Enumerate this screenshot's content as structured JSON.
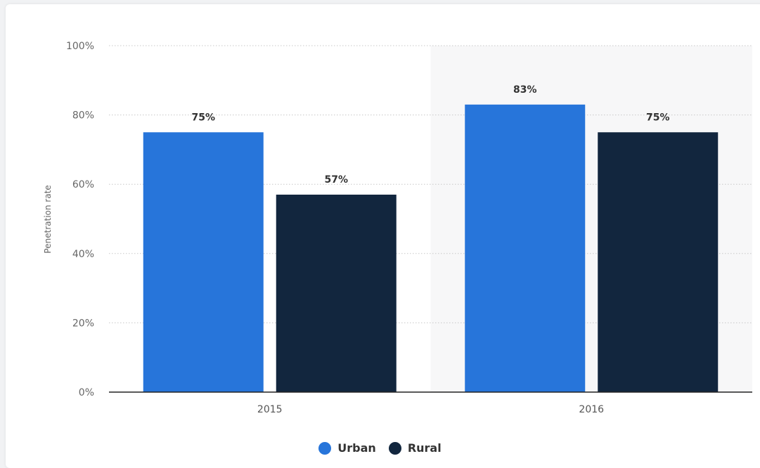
{
  "chart_data": {
    "type": "bar",
    "categories": [
      "2015",
      "2016"
    ],
    "series": [
      {
        "name": "Urban",
        "values": [
          75,
          83
        ],
        "color": "#2775da"
      },
      {
        "name": "Rural",
        "values": [
          57,
          75
        ],
        "color": "#12263e"
      }
    ],
    "data_labels": [
      [
        "75%",
        "83%"
      ],
      [
        "57%",
        "75%"
      ]
    ],
    "ylabel": "Penetration rate",
    "xlabel": "",
    "title": "",
    "ylim": [
      0,
      100
    ],
    "yticks": [
      {
        "value": 0,
        "label": "0%"
      },
      {
        "value": 20,
        "label": "20%"
      },
      {
        "value": 40,
        "label": "40%"
      },
      {
        "value": 60,
        "label": "60%"
      },
      {
        "value": 80,
        "label": "80%"
      },
      {
        "value": 100,
        "label": "100%"
      }
    ],
    "grid": true,
    "highlighted_category": "2016",
    "legend_position": "bottom-center"
  }
}
